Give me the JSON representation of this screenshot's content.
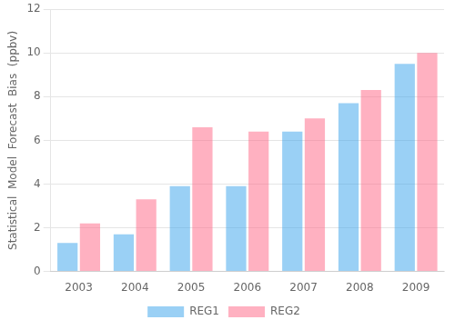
{
  "chart_data": {
    "type": "bar",
    "categories": [
      "2003",
      "2004",
      "2005",
      "2006",
      "2007",
      "2008",
      "2009"
    ],
    "series": [
      {
        "name": "REG1",
        "values": [
          1.3,
          1.7,
          3.9,
          3.9,
          6.4,
          7.7,
          9.5
        ]
      },
      {
        "name": "REG2",
        "values": [
          2.2,
          3.3,
          6.6,
          6.4,
          7.0,
          8.3,
          10.0
        ]
      }
    ],
    "ylabel": "Statistical  Model  Forecast  Bias  (ppbv)",
    "ylim": [
      0,
      12
    ],
    "yticks": [
      0,
      2,
      4,
      6,
      8,
      10,
      12
    ],
    "grid": true,
    "legend": "bottom"
  }
}
